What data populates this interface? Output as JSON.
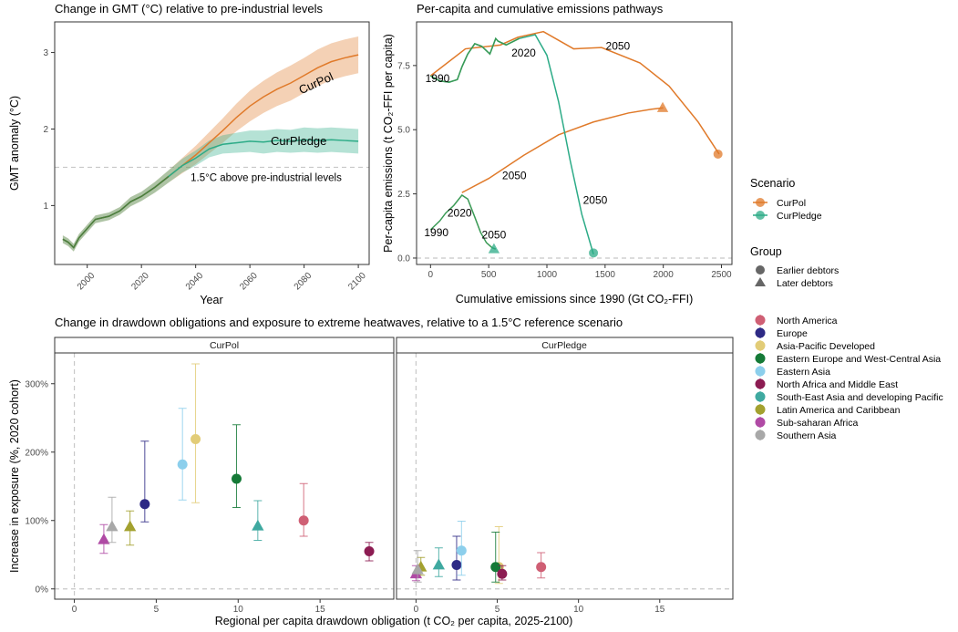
{
  "colors": {
    "CurPol": "#e07a2a",
    "CurPledge": "#2cab87",
    "earlier_green": "#3a9a55",
    "refline": "#c8c8c8"
  },
  "chart_data": [
    {
      "type": "line",
      "title": "Change in GMT (°C) relative to pre-industrial levels",
      "xlabel": "Year",
      "ylabel": "GMT anomaly (°C)",
      "xlim": [
        1988,
        2104
      ],
      "ylim": [
        0.23,
        3.4
      ],
      "xticks": [
        "2000",
        "2020",
        "2040",
        "2060",
        "2080",
        "2100"
      ],
      "yticks": [
        "1",
        "2",
        "3"
      ],
      "reference_line": {
        "y": 1.5,
        "label": "1.5°C above pre-industrial levels"
      },
      "series": [
        {
          "name": "CurPol",
          "x": [
            1991,
            1993,
            1995,
            1997,
            2000,
            2003,
            2008,
            2012,
            2016,
            2020,
            2025,
            2030,
            2035,
            2040,
            2045,
            2050,
            2055,
            2060,
            2065,
            2070,
            2075,
            2080,
            2085,
            2090,
            2095,
            2100
          ],
          "y": [
            0.56,
            0.52,
            0.45,
            0.58,
            0.7,
            0.82,
            0.86,
            0.93,
            1.05,
            1.12,
            1.24,
            1.38,
            1.52,
            1.66,
            1.82,
            1.98,
            2.15,
            2.3,
            2.42,
            2.52,
            2.6,
            2.7,
            2.8,
            2.88,
            2.93,
            2.97
          ],
          "band_halfwidth": [
            0.05,
            0.05,
            0.05,
            0.05,
            0.05,
            0.05,
            0.05,
            0.05,
            0.06,
            0.06,
            0.07,
            0.08,
            0.1,
            0.12,
            0.14,
            0.16,
            0.18,
            0.2,
            0.21,
            0.22,
            0.23,
            0.23,
            0.24,
            0.24,
            0.24,
            0.24
          ]
        },
        {
          "name": "CurPledge",
          "x": [
            1991,
            1993,
            1995,
            1997,
            2000,
            2003,
            2008,
            2012,
            2016,
            2020,
            2025,
            2030,
            2035,
            2040,
            2045,
            2050,
            2055,
            2060,
            2065,
            2070,
            2075,
            2080,
            2085,
            2090,
            2095,
            2100
          ],
          "y": [
            0.56,
            0.52,
            0.45,
            0.58,
            0.7,
            0.82,
            0.86,
            0.93,
            1.05,
            1.12,
            1.24,
            1.38,
            1.52,
            1.62,
            1.74,
            1.8,
            1.82,
            1.84,
            1.83,
            1.85,
            1.84,
            1.86,
            1.85,
            1.86,
            1.85,
            1.84
          ],
          "band_halfwidth": [
            0.05,
            0.05,
            0.05,
            0.05,
            0.05,
            0.05,
            0.05,
            0.05,
            0.06,
            0.06,
            0.07,
            0.08,
            0.09,
            0.1,
            0.11,
            0.12,
            0.13,
            0.14,
            0.15,
            0.15,
            0.15,
            0.16,
            0.16,
            0.16,
            0.16,
            0.16
          ]
        }
      ],
      "annotations": [
        "CurPol",
        "CurPledge"
      ]
    },
    {
      "type": "line",
      "title": "Per-capita and cumulative emissions pathways",
      "xlabel": "Cumulative emissions since 1990 (Gt CO₂-FFI)",
      "ylabel": "Per-capita emissions (t CO₂-FFI per capita)",
      "xlim": [
        -120,
        2590
      ],
      "ylim": [
        -0.25,
        9.2
      ],
      "xticks": [
        "0",
        "500",
        "1000",
        "1500",
        "2000",
        "2500"
      ],
      "yticks": [
        "0.0",
        "2.5",
        "5.0",
        "7.5"
      ],
      "groups": [
        "Earlier debtors",
        "Later debtors"
      ],
      "series": [
        {
          "name": "CurPol",
          "group": "Earlier debtors",
          "x": [
            0,
            300,
            600,
            750,
            970,
            1230,
            1470,
            1800,
            2050,
            2300,
            2480
          ],
          "y": [
            7.1,
            8.15,
            8.3,
            8.6,
            8.82,
            8.15,
            8.2,
            7.6,
            6.7,
            5.3,
            4.05
          ]
        },
        {
          "name": "CurPol",
          "group": "Later debtors",
          "x": [
            270,
            500,
            800,
            1100,
            1400,
            1700,
            1900,
            2000
          ],
          "y": [
            2.55,
            3.1,
            4.0,
            4.8,
            5.3,
            5.65,
            5.8,
            5.85
          ]
        },
        {
          "name": "CurPledge",
          "group": "Earlier debtors",
          "x": [
            0,
            80,
            160,
            230,
            270,
            320,
            380,
            440,
            510,
            560,
            580,
            650,
            760,
            900,
            1000,
            1100,
            1200,
            1300,
            1400
          ],
          "y": [
            7.1,
            6.9,
            6.85,
            6.95,
            7.45,
            7.95,
            8.35,
            8.25,
            7.95,
            8.55,
            8.45,
            8.3,
            8.55,
            8.7,
            7.9,
            6.1,
            3.8,
            1.7,
            0.15
          ]
        },
        {
          "name": "CurPledge",
          "group": "Later debtors",
          "x": [
            0,
            80,
            130,
            200,
            270,
            320,
            380,
            430,
            480,
            530,
            560
          ],
          "y": [
            1.1,
            1.45,
            1.75,
            2.05,
            2.45,
            2.3,
            1.6,
            1.0,
            0.6,
            0.4,
            0.35
          ]
        }
      ],
      "endpoints": [
        {
          "series": "CurPol",
          "group": "Earlier debtors",
          "x": 2470,
          "y": 4.05,
          "marker": "circle"
        },
        {
          "series": "CurPol",
          "group": "Later debtors",
          "x": 1995,
          "y": 5.85,
          "marker": "triangle"
        },
        {
          "series": "CurPledge",
          "group": "Earlier debtors",
          "x": 1400,
          "y": 0.2,
          "marker": "circle"
        },
        {
          "series": "CurPledge",
          "group": "Later debtors",
          "x": 545,
          "y": 0.35,
          "marker": "triangle"
        }
      ],
      "annotations": [
        {
          "text": "1990",
          "x": 60,
          "y": 7.0,
          "series": "CurPledge"
        },
        {
          "text": "2020",
          "x": 800,
          "y": 8.0,
          "series": "CurPledge"
        },
        {
          "text": "2050",
          "x": 1610,
          "y": 8.25,
          "series": "CurPol"
        },
        {
          "text": "1990",
          "x": 50,
          "y": 1.0,
          "series": "CurPledge"
        },
        {
          "text": "2020",
          "x": 250,
          "y": 1.75,
          "series": "CurPledge"
        },
        {
          "text": "2050",
          "x": 545,
          "y": 0.9,
          "series": "CurPledge"
        },
        {
          "text": "2050",
          "x": 720,
          "y": 3.22,
          "series": "CurPol"
        },
        {
          "text": "2050",
          "x": 1415,
          "y": 2.25,
          "series": "CurPledge"
        }
      ]
    },
    {
      "type": "scatter",
      "title": "Change in drawdown obligations and exposure to extreme heatwaves, relative to a 1.5°C reference scenario",
      "xlabel": "Regional per capita drawdown obligation (t CO₂ per capita, 2025-2100)",
      "ylabel": "Increase in exposure (%, 2020 cohort)",
      "facets": [
        "CurPol",
        "CurPledge"
      ],
      "xlim": [
        -1.2,
        19.5
      ],
      "ylim": [
        -15,
        345
      ],
      "xticks": [
        "0",
        "5",
        "10",
        "15"
      ],
      "yticks": [
        "0%",
        "100%",
        "200%",
        "300%"
      ],
      "series": [
        {
          "name": "North America",
          "color": "#cf5f74",
          "marker": "circle",
          "points": {
            "CurPol": {
              "x": 14.0,
              "y": 100,
              "low": 77,
              "high": 154
            },
            "CurPledge": {
              "x": 7.7,
              "y": 32,
              "low": 16,
              "high": 53
            }
          }
        },
        {
          "name": "Europe",
          "color": "#2e2a85",
          "marker": "circle",
          "points": {
            "CurPol": {
              "x": 4.3,
              "y": 124,
              "low": 98,
              "high": 216
            },
            "CurPledge": {
              "x": 2.5,
              "y": 35,
              "low": 13,
              "high": 77
            }
          }
        },
        {
          "name": "Asia-Pacific Developed",
          "color": "#e2cc77",
          "marker": "circle",
          "points": {
            "CurPol": {
              "x": 7.4,
              "y": 219,
              "low": 126,
              "high": 329
            },
            "CurPledge": {
              "x": 5.1,
              "y": 32,
              "low": 8,
              "high": 91
            }
          }
        },
        {
          "name": "Eastern Europe and West-Central Asia",
          "color": "#157a37",
          "marker": "circle",
          "points": {
            "CurPol": {
              "x": 9.9,
              "y": 161,
              "low": 119,
              "high": 240
            },
            "CurPledge": {
              "x": 4.9,
              "y": 32,
              "low": 10,
              "high": 83
            }
          }
        },
        {
          "name": "Eastern Asia",
          "color": "#8ccfec",
          "marker": "circle",
          "points": {
            "CurPol": {
              "x": 6.6,
              "y": 182,
              "low": 130,
              "high": 264
            },
            "CurPledge": {
              "x": 2.8,
              "y": 56,
              "low": 20,
              "high": 99
            }
          }
        },
        {
          "name": "North Africa and Middle East",
          "color": "#8c1c52",
          "marker": "circle",
          "points": {
            "CurPol": {
              "x": 18.0,
              "y": 55,
              "low": 41,
              "high": 68
            },
            "CurPledge": {
              "x": 5.3,
              "y": 22,
              "low": 13,
              "high": 34
            }
          }
        },
        {
          "name": "South-East Asia and developing Pacific",
          "color": "#3fa9a0",
          "marker": "triangle",
          "points": {
            "CurPol": {
              "x": 11.2,
              "y": 92,
              "low": 71,
              "high": 129
            },
            "CurPledge": {
              "x": 1.4,
              "y": 35,
              "low": 18,
              "high": 60
            }
          }
        },
        {
          "name": "Latin America and Caribbean",
          "color": "#a3a12f",
          "marker": "triangle",
          "points": {
            "CurPol": {
              "x": 3.4,
              "y": 91,
              "low": 64,
              "high": 114
            },
            "CurPledge": {
              "x": 0.3,
              "y": 32,
              "low": 20,
              "high": 46
            }
          }
        },
        {
          "name": "Sub-saharan Africa",
          "color": "#b04aa5",
          "marker": "triangle",
          "points": {
            "CurPol": {
              "x": 1.8,
              "y": 72,
              "low": 52,
              "high": 94
            },
            "CurPledge": {
              "x": 0.0,
              "y": 22,
              "low": 12,
              "high": 34
            }
          }
        },
        {
          "name": "Southern Asia",
          "color": "#a8a8a8",
          "marker": "triangle",
          "points": {
            "CurPol": {
              "x": 2.3,
              "y": 91,
              "low": 68,
              "high": 134
            },
            "CurPledge": {
              "x": 0.1,
              "y": 28,
              "low": 10,
              "high": 56
            }
          }
        }
      ]
    }
  ],
  "legends": {
    "scenario": {
      "title": "Scenario",
      "items": [
        "CurPol",
        "CurPledge"
      ]
    },
    "group": {
      "title": "Group",
      "items": [
        "Earlier debtors",
        "Later debtors"
      ]
    }
  }
}
